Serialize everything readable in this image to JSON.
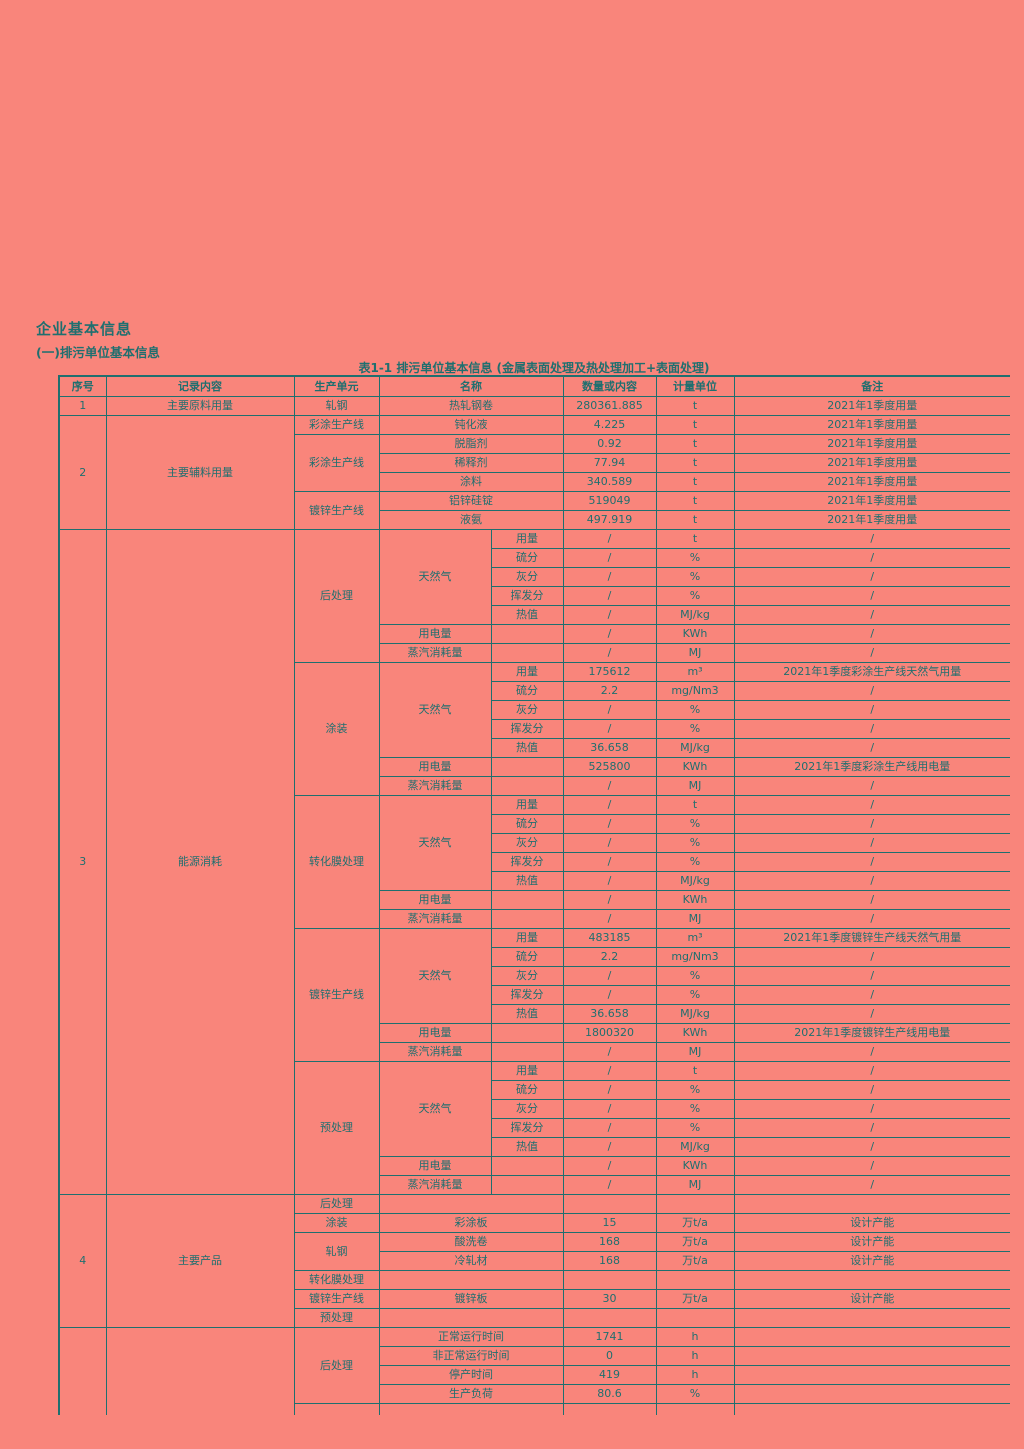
{
  "page": {
    "title": "企业基本信息",
    "subtitle": "(一)排污单位基本信息",
    "table_caption": "表1-1 排污单位基本信息 (金属表面处理及热处理加工+表面处理)"
  },
  "colors": {
    "background": "#f9857b",
    "ink": "#1f6f6f"
  },
  "table": {
    "headers": [
      "序号",
      "记录内容",
      "生产单元",
      "名称",
      "数量或内容",
      "计量单位",
      "备注"
    ],
    "rows": [
      [
        {
          "t": "序号"
        },
        {
          "t": "记录内容"
        },
        {
          "t": "生产单元"
        },
        {
          "t": "名称",
          "cs": 2
        },
        {
          "t": "数量或内容"
        },
        {
          "t": "计量单位"
        },
        {
          "t": "备注"
        }
      ],
      [
        {
          "t": "1"
        },
        {
          "t": "主要原料用量"
        },
        {
          "t": "轧钢"
        },
        {
          "t": "热轧钢卷",
          "cs": 2
        },
        {
          "t": "280361.885"
        },
        {
          "t": "t"
        },
        {
          "t": "2021年1季度用量"
        }
      ],
      [
        {
          "t": "2",
          "rs": 6
        },
        {
          "t": "主要辅料用量",
          "rs": 6
        },
        {
          "t": "彩涂生产线"
        },
        {
          "t": "钝化液",
          "cs": 2
        },
        {
          "t": "4.225"
        },
        {
          "t": "t"
        },
        {
          "t": "2021年1季度用量"
        }
      ],
      [
        {
          "t": "彩涂生产线",
          "rs": 3
        },
        {
          "t": "脱脂剂",
          "cs": 2
        },
        {
          "t": "0.92"
        },
        {
          "t": "t"
        },
        {
          "t": "2021年1季度用量"
        }
      ],
      [
        {
          "t": "稀释剂",
          "cs": 2
        },
        {
          "t": "77.94"
        },
        {
          "t": "t"
        },
        {
          "t": "2021年1季度用量"
        }
      ],
      [
        {
          "t": "涂料",
          "cs": 2
        },
        {
          "t": "340.589"
        },
        {
          "t": "t"
        },
        {
          "t": "2021年1季度用量"
        }
      ],
      [
        {
          "t": "镀锌生产线",
          "rs": 2
        },
        {
          "t": "铝锌硅锭",
          "cs": 2
        },
        {
          "t": "519049"
        },
        {
          "t": "t"
        },
        {
          "t": "2021年1季度用量"
        }
      ],
      [
        {
          "t": "液氨",
          "cs": 2
        },
        {
          "t": "497.919"
        },
        {
          "t": "t"
        },
        {
          "t": "2021年1季度用量"
        }
      ],
      [
        {
          "t": "3",
          "rs": 35
        },
        {
          "t": "能源消耗",
          "rs": 35
        },
        {
          "t": "后处理",
          "rs": 7
        },
        {
          "t": "天然气",
          "rs": 5
        },
        {
          "t": "用量"
        },
        {
          "t": "/"
        },
        {
          "t": "t"
        },
        {
          "t": "/"
        }
      ],
      [
        {
          "t": "硫分"
        },
        {
          "t": "/"
        },
        {
          "t": "%"
        },
        {
          "t": "/"
        }
      ],
      [
        {
          "t": "灰分"
        },
        {
          "t": "/"
        },
        {
          "t": "%"
        },
        {
          "t": "/"
        }
      ],
      [
        {
          "t": "挥发分"
        },
        {
          "t": "/"
        },
        {
          "t": "%"
        },
        {
          "t": "/"
        }
      ],
      [
        {
          "t": "热值"
        },
        {
          "t": "/"
        },
        {
          "t": "MJ/kg"
        },
        {
          "t": "/"
        }
      ],
      [
        {
          "t": "用电量"
        },
        {
          "t": ""
        },
        {
          "t": "/"
        },
        {
          "t": "KWh"
        },
        {
          "t": "/"
        }
      ],
      [
        {
          "t": "蒸汽消耗量"
        },
        {
          "t": ""
        },
        {
          "t": "/"
        },
        {
          "t": "MJ"
        },
        {
          "t": "/"
        }
      ],
      [
        {
          "t": "涂装",
          "rs": 7
        },
        {
          "t": "天然气",
          "rs": 5
        },
        {
          "t": "用量"
        },
        {
          "t": "175612"
        },
        {
          "t": "m³"
        },
        {
          "t": "2021年1季度彩涂生产线天然气用量"
        }
      ],
      [
        {
          "t": "硫分"
        },
        {
          "t": "2.2"
        },
        {
          "t": "mg/Nm3"
        },
        {
          "t": "/"
        }
      ],
      [
        {
          "t": "灰分"
        },
        {
          "t": "/"
        },
        {
          "t": "%"
        },
        {
          "t": "/"
        }
      ],
      [
        {
          "t": "挥发分"
        },
        {
          "t": "/"
        },
        {
          "t": "%"
        },
        {
          "t": "/"
        }
      ],
      [
        {
          "t": "热值"
        },
        {
          "t": "36.658"
        },
        {
          "t": "MJ/kg"
        },
        {
          "t": "/"
        }
      ],
      [
        {
          "t": "用电量"
        },
        {
          "t": ""
        },
        {
          "t": "525800"
        },
        {
          "t": "KWh"
        },
        {
          "t": "2021年1季度彩涂生产线用电量"
        }
      ],
      [
        {
          "t": "蒸汽消耗量"
        },
        {
          "t": ""
        },
        {
          "t": "/"
        },
        {
          "t": "MJ"
        },
        {
          "t": "/"
        }
      ],
      [
        {
          "t": "转化膜处理",
          "rs": 7
        },
        {
          "t": "天然气",
          "rs": 5
        },
        {
          "t": "用量"
        },
        {
          "t": "/"
        },
        {
          "t": "t"
        },
        {
          "t": "/"
        }
      ],
      [
        {
          "t": "硫分"
        },
        {
          "t": "/"
        },
        {
          "t": "%"
        },
        {
          "t": "/"
        }
      ],
      [
        {
          "t": "灰分"
        },
        {
          "t": "/"
        },
        {
          "t": "%"
        },
        {
          "t": "/"
        }
      ],
      [
        {
          "t": "挥发分"
        },
        {
          "t": "/"
        },
        {
          "t": "%"
        },
        {
          "t": "/"
        }
      ],
      [
        {
          "t": "热值"
        },
        {
          "t": "/"
        },
        {
          "t": "MJ/kg"
        },
        {
          "t": "/"
        }
      ],
      [
        {
          "t": "用电量"
        },
        {
          "t": ""
        },
        {
          "t": "/"
        },
        {
          "t": "KWh"
        },
        {
          "t": "/"
        }
      ],
      [
        {
          "t": "蒸汽消耗量"
        },
        {
          "t": ""
        },
        {
          "t": "/"
        },
        {
          "t": "MJ"
        },
        {
          "t": "/"
        }
      ],
      [
        {
          "t": "镀锌生产线",
          "rs": 7
        },
        {
          "t": "天然气",
          "rs": 5
        },
        {
          "t": "用量"
        },
        {
          "t": "483185"
        },
        {
          "t": "m³"
        },
        {
          "t": "2021年1季度镀锌生产线天然气用量"
        }
      ],
      [
        {
          "t": "硫分"
        },
        {
          "t": "2.2"
        },
        {
          "t": "mg/Nm3"
        },
        {
          "t": "/"
        }
      ],
      [
        {
          "t": "灰分"
        },
        {
          "t": "/"
        },
        {
          "t": "%"
        },
        {
          "t": "/"
        }
      ],
      [
        {
          "t": "挥发分"
        },
        {
          "t": "/"
        },
        {
          "t": "%"
        },
        {
          "t": "/"
        }
      ],
      [
        {
          "t": "热值"
        },
        {
          "t": "36.658"
        },
        {
          "t": "MJ/kg"
        },
        {
          "t": "/"
        }
      ],
      [
        {
          "t": "用电量"
        },
        {
          "t": ""
        },
        {
          "t": "1800320"
        },
        {
          "t": "KWh"
        },
        {
          "t": "2021年1季度镀锌生产线用电量"
        }
      ],
      [
        {
          "t": "蒸汽消耗量"
        },
        {
          "t": ""
        },
        {
          "t": "/"
        },
        {
          "t": "MJ"
        },
        {
          "t": "/"
        }
      ],
      [
        {
          "t": "预处理",
          "rs": 7
        },
        {
          "t": "天然气",
          "rs": 5
        },
        {
          "t": "用量"
        },
        {
          "t": "/"
        },
        {
          "t": "t"
        },
        {
          "t": "/"
        }
      ],
      [
        {
          "t": "硫分"
        },
        {
          "t": "/"
        },
        {
          "t": "%"
        },
        {
          "t": "/"
        }
      ],
      [
        {
          "t": "灰分"
        },
        {
          "t": "/"
        },
        {
          "t": "%"
        },
        {
          "t": "/"
        }
      ],
      [
        {
          "t": "挥发分"
        },
        {
          "t": "/"
        },
        {
          "t": "%"
        },
        {
          "t": "/"
        }
      ],
      [
        {
          "t": "热值"
        },
        {
          "t": "/"
        },
        {
          "t": "MJ/kg"
        },
        {
          "t": "/"
        }
      ],
      [
        {
          "t": "用电量"
        },
        {
          "t": ""
        },
        {
          "t": "/"
        },
        {
          "t": "KWh"
        },
        {
          "t": "/"
        }
      ],
      [
        {
          "t": "蒸汽消耗量"
        },
        {
          "t": ""
        },
        {
          "t": "/"
        },
        {
          "t": "MJ"
        },
        {
          "t": "/"
        }
      ],
      [
        {
          "t": "4",
          "rs": 7
        },
        {
          "t": "主要产品",
          "rs": 7
        },
        {
          "t": "后处理"
        },
        {
          "t": "",
          "cs": 2
        },
        {
          "t": ""
        },
        {
          "t": ""
        },
        {
          "t": ""
        }
      ],
      [
        {
          "t": "涂装"
        },
        {
          "t": "彩涂板",
          "cs": 2
        },
        {
          "t": "15"
        },
        {
          "t": "万t/a"
        },
        {
          "t": "设计产能"
        }
      ],
      [
        {
          "t": "轧钢",
          "rs": 2
        },
        {
          "t": "酸洗卷",
          "cs": 2
        },
        {
          "t": "168"
        },
        {
          "t": "万t/a"
        },
        {
          "t": "设计产能"
        }
      ],
      [
        {
          "t": "冷轧材",
          "cs": 2
        },
        {
          "t": "168"
        },
        {
          "t": "万t/a"
        },
        {
          "t": "设计产能"
        }
      ],
      [
        {
          "t": "转化膜处理"
        },
        {
          "t": "",
          "cs": 2
        },
        {
          "t": ""
        },
        {
          "t": ""
        },
        {
          "t": ""
        }
      ],
      [
        {
          "t": "镀锌生产线"
        },
        {
          "t": "镀锌板",
          "cs": 2
        },
        {
          "t": "30"
        },
        {
          "t": "万t/a"
        },
        {
          "t": "设计产能"
        }
      ],
      [
        {
          "t": "预处理"
        },
        {
          "t": "",
          "cs": 2
        },
        {
          "t": ""
        },
        {
          "t": ""
        },
        {
          "t": ""
        }
      ],
      [
        {
          "t": "",
          "rs": 5
        },
        {
          "t": "",
          "rs": 5
        },
        {
          "t": "后处理",
          "rs": 4
        },
        {
          "t": "正常运行时间",
          "cs": 2
        },
        {
          "t": "1741"
        },
        {
          "t": "h"
        },
        {
          "t": ""
        }
      ],
      [
        {
          "t": "非正常运行时间",
          "cs": 2
        },
        {
          "t": "0"
        },
        {
          "t": "h"
        },
        {
          "t": ""
        }
      ],
      [
        {
          "t": "停产时间",
          "cs": 2
        },
        {
          "t": "419"
        },
        {
          "t": "h"
        },
        {
          "t": ""
        }
      ],
      [
        {
          "t": "生产负荷",
          "cs": 2
        },
        {
          "t": "80.6"
        },
        {
          "t": "%"
        },
        {
          "t": ""
        }
      ],
      [
        {
          "t": ""
        },
        {
          "t": "",
          "cs": 2
        },
        {
          "t": ""
        },
        {
          "t": ""
        },
        {
          "t": ""
        }
      ]
    ]
  }
}
